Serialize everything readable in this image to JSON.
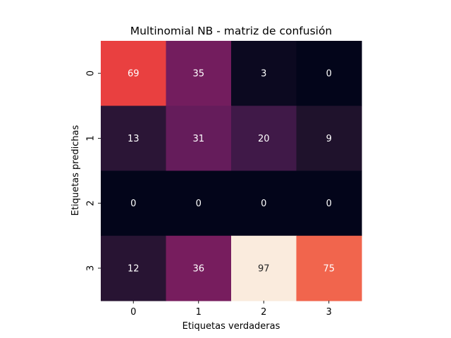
{
  "chart_data": {
    "type": "heatmap",
    "title": "Multinomial NB - matriz de confusión",
    "xlabel": "Etiquetas verdaderas",
    "ylabel": "Etiquetas predichas",
    "x_categories": [
      "0",
      "1",
      "2",
      "3"
    ],
    "y_categories": [
      "0",
      "1",
      "2",
      "3"
    ],
    "values": [
      [
        69,
        35,
        3,
        0
      ],
      [
        13,
        31,
        20,
        9
      ],
      [
        0,
        0,
        0,
        0
      ],
      [
        12,
        36,
        97,
        75
      ]
    ],
    "vmin": 0,
    "vmax": 97,
    "colormap": "rocket",
    "colorbar": false,
    "annotations": true
  }
}
